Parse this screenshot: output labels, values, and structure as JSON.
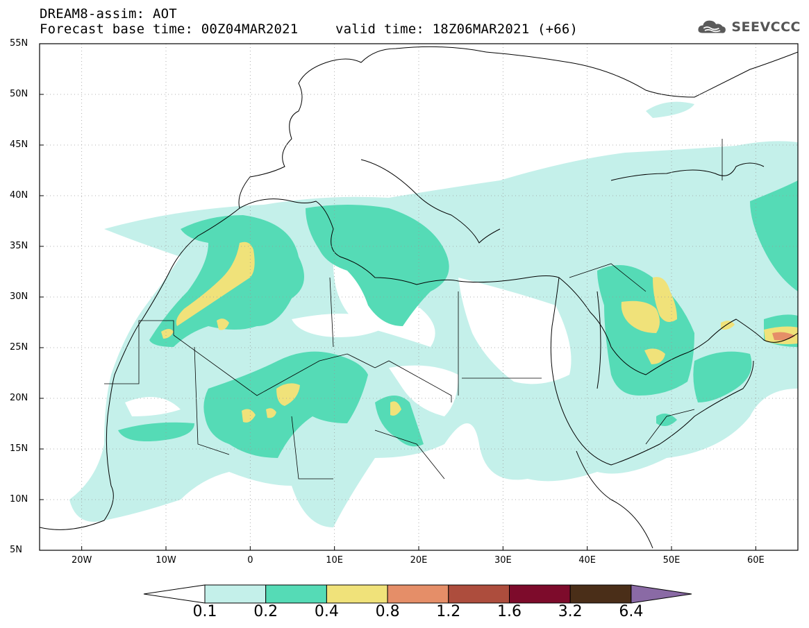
{
  "header": {
    "line1": "DREAM8-assim: AOT",
    "line2_base": "Forecast base time: 00Z04MAR2021",
    "line2_valid": "valid time: 18Z06MAR2021 (+66)"
  },
  "logo": {
    "text": "SEEVCCC",
    "icon": "cloud-icon"
  },
  "map": {
    "lat_labels": [
      "55N",
      "50N",
      "45N",
      "40N",
      "35N",
      "30N",
      "25N",
      "20N",
      "15N",
      "10N",
      "5N"
    ],
    "lat_values": [
      55,
      50,
      45,
      40,
      35,
      30,
      25,
      20,
      15,
      10,
      5
    ],
    "lon_labels": [
      "20W",
      "10W",
      "0",
      "10E",
      "20E",
      "30E",
      "40E",
      "50E",
      "60E"
    ],
    "lon_values": [
      -20,
      -10,
      0,
      10,
      20,
      30,
      40,
      50,
      60
    ],
    "extent": {
      "lon_min": -25,
      "lon_max": 65,
      "lat_min": 5,
      "lat_max": 55
    },
    "grid": "dotted"
  },
  "colorbar": {
    "labels": [
      "0.1",
      "0.2",
      "0.4",
      "0.8",
      "1.2",
      "1.6",
      "3.2",
      "6.4"
    ],
    "colors": [
      "#c4f0ea",
      "#55dbb6",
      "#f0e27a",
      "#e58e68",
      "#ad4d3d",
      "#7d0b2b",
      "#4a2e18"
    ],
    "over_color": "#8a6aa5",
    "under_color": "#ffffff"
  },
  "chart_data": {
    "type": "heatmap",
    "title": "DREAM8-assim: AOT",
    "levels": [
      0.1,
      0.2,
      0.4,
      0.8,
      1.2,
      1.6,
      3.2,
      6.4
    ],
    "xlim": [
      -25,
      65
    ],
    "ylim": [
      5,
      55
    ]
  }
}
